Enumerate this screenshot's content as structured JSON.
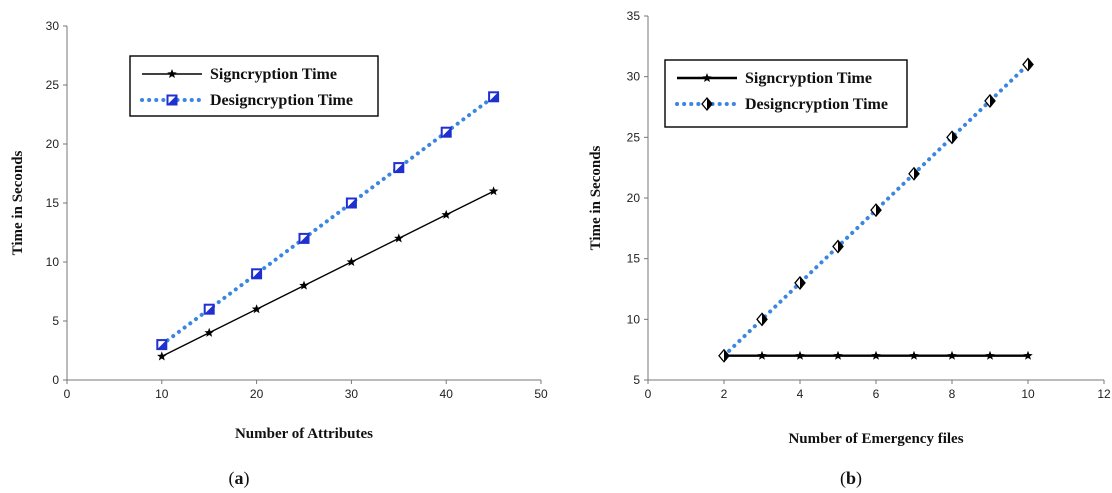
{
  "chart_data": [
    {
      "type": "line",
      "caption_letter": "a",
      "xlabel": "Number of Attributes",
      "ylabel": "Time in Seconds",
      "xlim": [
        0,
        50
      ],
      "ylim": [
        0,
        30
      ],
      "xticks": [
        0,
        10,
        20,
        30,
        40,
        50
      ],
      "yticks": [
        0,
        5,
        10,
        15,
        20,
        25,
        30
      ],
      "legend_position": "top-left",
      "grid": false,
      "x": [
        10,
        15,
        20,
        25,
        30,
        35,
        40,
        45
      ],
      "series": [
        {
          "name": "Signcryption Time",
          "values": [
            2,
            4,
            6,
            8,
            10,
            12,
            14,
            16
          ],
          "color": "#000000",
          "style": "solid",
          "marker": "star"
        },
        {
          "name": "Designcryption Time",
          "values": [
            3,
            6,
            9,
            12,
            15,
            18,
            21,
            24
          ],
          "color": "#3a86e0",
          "style": "dotted",
          "marker": "square",
          "marker_color": "#1f2fd0"
        }
      ]
    },
    {
      "type": "line",
      "caption_letter": "b",
      "xlabel": "Number of Emergency files",
      "ylabel": "Time in Seconds",
      "xlim": [
        0,
        12
      ],
      "ylim": [
        5,
        35
      ],
      "xticks": [
        0,
        2,
        4,
        6,
        8,
        10,
        12
      ],
      "yticks": [
        5,
        10,
        15,
        20,
        25,
        30,
        35
      ],
      "legend_position": "top-left",
      "grid": false,
      "x": [
        2,
        3,
        4,
        5,
        6,
        7,
        8,
        9,
        10
      ],
      "series": [
        {
          "name": "Signcryption Time",
          "values": [
            7,
            7,
            7,
            7,
            7,
            7,
            7,
            7,
            7
          ],
          "color": "#000000",
          "style": "solid",
          "marker": "star"
        },
        {
          "name": "Designcryption Time",
          "values": [
            7,
            10,
            13,
            16,
            19,
            22,
            25,
            28,
            31
          ],
          "color": "#3a86e0",
          "style": "dotted",
          "marker": "diamond",
          "marker_color": "#000000"
        }
      ]
    }
  ]
}
